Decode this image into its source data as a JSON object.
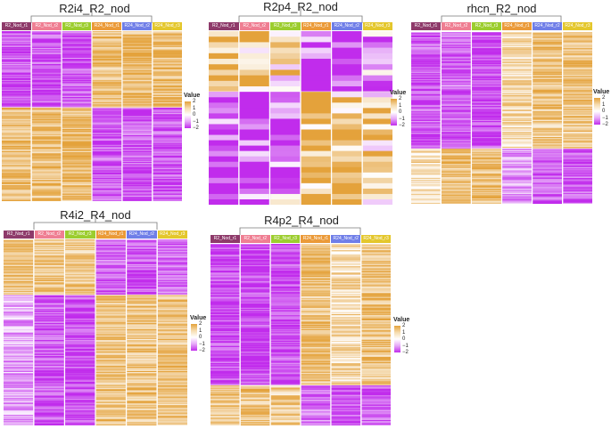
{
  "sample_labels": [
    "R2_Nod_r1",
    "R2_Nod_r2",
    "R2_Nod_r3",
    "R24_Nod_r1",
    "R24_Nod_r2",
    "R24_Nod_r3"
  ],
  "label_colors": [
    "#8e3a6a",
    "#ef7e92",
    "#9ccd2e",
    "#eb9a38",
    "#6f7ee8",
    "#e4c72c"
  ],
  "color_scale": {
    "low": "#c12cec",
    "mid": "#ffffff",
    "high": "#e4a23b"
  },
  "legend": {
    "title": "Value",
    "ticks": [
      "2",
      "1",
      "0",
      "−1",
      "−2"
    ]
  },
  "chart_data": [
    {
      "type": "heatmap",
      "title": "R2i4_R2_nod",
      "columns": [
        "R2_Nod_r1",
        "R2_Nod_r2",
        "R2_Nod_r3",
        "R24_Nod_r1",
        "R24_Nod_r2",
        "R24_Nod_r3"
      ],
      "blocks": [
        {
          "fraction": 0.45,
          "values": [
            -1.2,
            -1.2,
            -1.2,
            0.9,
            0.9,
            0.9
          ]
        },
        {
          "fraction": 0.55,
          "values": [
            0.9,
            0.9,
            0.9,
            -1.2,
            -1.2,
            -1.2
          ]
        }
      ],
      "legend_range": [
        -2,
        2
      ]
    },
    {
      "type": "heatmap",
      "title": "R2p4_R2_nod",
      "columns": [
        "R2_Nod_r1",
        "R2_Nod_r2",
        "R2_Nod_r3",
        "R24_Nod_r1",
        "R24_Nod_r2",
        "R24_Nod_r3"
      ],
      "blocks": [
        {
          "fraction": 0.35,
          "values": [
            1.0,
            0.9,
            0.4,
            -1.3,
            -1.4,
            -1.0
          ]
        },
        {
          "fraction": 0.65,
          "values": [
            -1.4,
            -1.2,
            -0.8,
            1.0,
            0.8,
            0.5
          ]
        }
      ],
      "legend_range": [
        -2,
        2
      ]
    },
    {
      "type": "heatmap",
      "title": "rhcn_R2_nod",
      "columns": [
        "R2_Nod_r1",
        "R2_Nod_r2",
        "R2_Nod_r3",
        "R24_Nod_r1",
        "R24_Nod_r2",
        "R24_Nod_r3"
      ],
      "blocks": [
        {
          "fraction": 0.68,
          "values": [
            -1.2,
            -1.2,
            -1.3,
            0.5,
            0.8,
            0.8
          ]
        },
        {
          "fraction": 0.32,
          "values": [
            0.5,
            0.9,
            0.9,
            -0.7,
            -1.2,
            -1.2
          ]
        }
      ],
      "legend_range": [
        -2,
        2
      ]
    },
    {
      "type": "heatmap",
      "title": "R4i2_R4_nod",
      "columns": [
        "R2_Nod_r1",
        "R2_Nod_r2",
        "R2_Nod_r3",
        "R24_Nod_r1",
        "R24_Nod_r2",
        "R24_Nod_r3"
      ],
      "blocks": [
        {
          "fraction": 0.3,
          "values": [
            0.9,
            0.8,
            0.7,
            -1.1,
            -1.2,
            -1.1
          ]
        },
        {
          "fraction": 0.7,
          "values": [
            -0.6,
            -1.2,
            -1.3,
            0.8,
            0.8,
            0.8
          ]
        }
      ],
      "legend_range": [
        -2,
        2
      ]
    },
    {
      "type": "heatmap",
      "title": "R4p2_R4_nod",
      "columns": [
        "R2_Nod_r1",
        "R2_Nod_r2",
        "R2_Nod_r3",
        "R24_Nod_r1",
        "R24_Nod_r2",
        "R24_Nod_r3"
      ],
      "blocks": [
        {
          "fraction": 0.78,
          "values": [
            -1.3,
            -1.3,
            -1.3,
            0.9,
            0.5,
            0.8
          ]
        },
        {
          "fraction": 0.22,
          "values": [
            0.8,
            0.8,
            0.7,
            -1.0,
            -1.3,
            -1.1
          ]
        }
      ],
      "legend_range": [
        -2,
        2
      ]
    }
  ]
}
